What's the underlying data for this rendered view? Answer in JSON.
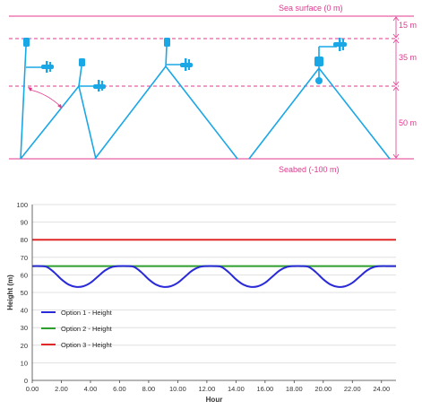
{
  "colors": {
    "magenta": "#e0388f",
    "cyan": "#1aa7e6",
    "blue": "#2a2ad8",
    "green": "#2e9e2e",
    "red": "#e02828",
    "grid": "#d9d9d9",
    "axis": "#444444"
  },
  "diagram": {
    "sea_surface_label": "Sea surface (0 m)",
    "seabed_label": "Seabed (-100 m)",
    "dimensions": [
      "15 m",
      "35 m",
      "50 m"
    ],
    "buoy_icon": "buoy-icon",
    "turbine_icon": "turbine-icon"
  },
  "chart_data": {
    "type": "line",
    "title": "",
    "xlabel": "Hour",
    "ylabel": "Height (m)",
    "xlim": [
      0,
      25
    ],
    "ylim": [
      0,
      100
    ],
    "x_ticks": [
      "0.00",
      "2.00",
      "4.00",
      "6.00",
      "8.00",
      "10.00",
      "12.00",
      "14.00",
      "16.00",
      "18.00",
      "20.00",
      "22.00",
      "24.00"
    ],
    "y_ticks": [
      "0",
      "10",
      "20",
      "30",
      "40",
      "50",
      "60",
      "70",
      "80",
      "90",
      "100"
    ],
    "grid": true,
    "legend_position": "bottom-left",
    "series": [
      {
        "name": "Option 1 - Height",
        "color": "#2a2ad8",
        "x": [
          0,
          0.5,
          1,
          1.5,
          2,
          2.5,
          3,
          3.5,
          4,
          4.5,
          5,
          5.5,
          6,
          6.5,
          7,
          7.5,
          8,
          8.5,
          9,
          9.5,
          10,
          10.5,
          11,
          11.5,
          12,
          12.5,
          13,
          13.5,
          14,
          14.5,
          15,
          15.5,
          16,
          16.5,
          17,
          17.5,
          18,
          18.5,
          19,
          19.5,
          20,
          20.5,
          21,
          21.5,
          22,
          22.5,
          23,
          23.5,
          24,
          24.5,
          25
        ],
        "values": [
          65,
          65,
          64.5,
          61.5,
          57.5,
          54.5,
          53.2,
          53.5,
          55.5,
          59,
          62.5,
          64.5,
          65,
          65,
          64.5,
          61.5,
          57.5,
          54.5,
          53.2,
          53.5,
          55.5,
          59,
          62.5,
          64.5,
          65,
          65,
          64.5,
          61.5,
          57.5,
          54.5,
          53.2,
          53.5,
          55.5,
          59,
          62.5,
          64.5,
          65,
          65,
          64.5,
          61.5,
          57.5,
          54.5,
          53.2,
          53.5,
          55.5,
          59,
          62.5,
          64.5,
          65,
          65,
          65
        ]
      },
      {
        "name": "Option 2 - Height",
        "color": "#2e9e2e",
        "x": [
          0,
          25
        ],
        "values": [
          65,
          65
        ]
      },
      {
        "name": "Option 3 - Height",
        "color": "#e02828",
        "x": [
          0,
          25
        ],
        "values": [
          80,
          80
        ]
      }
    ]
  }
}
